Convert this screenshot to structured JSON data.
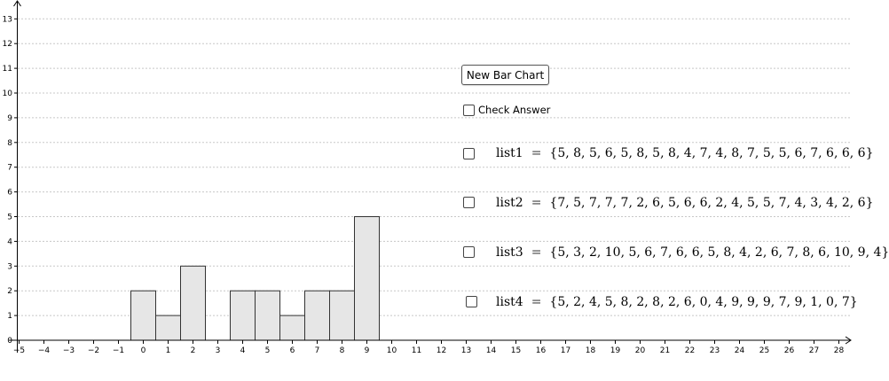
{
  "graph": {
    "x_ticks": [
      "−5",
      "−4",
      "−3",
      "−2",
      "−1",
      "0",
      "1",
      "2",
      "3",
      "4",
      "5",
      "6",
      "7",
      "8",
      "9",
      "10",
      "11",
      "12",
      "13",
      "14",
      "15",
      "16",
      "17",
      "18",
      "19",
      "20",
      "21",
      "22",
      "23",
      "24",
      "25",
      "26",
      "27",
      "28"
    ],
    "y_ticks": [
      "0",
      "1",
      "2",
      "3",
      "4",
      "5",
      "6",
      "7",
      "8",
      "9",
      "10",
      "11",
      "12",
      "13"
    ]
  },
  "chart_data": {
    "type": "bar",
    "categories": [
      0,
      1,
      2,
      3,
      4,
      5,
      6,
      7,
      8,
      9
    ],
    "values": [
      2,
      1,
      3,
      0,
      2,
      2,
      1,
      2,
      2,
      5
    ],
    "xlim": [
      -5,
      28
    ],
    "ylim": [
      0,
      13
    ],
    "grid": true,
    "bar_fill": "#e6e6e6",
    "bar_stroke": "#333333"
  },
  "controls": {
    "new_bar_chart_label": "New Bar Chart",
    "check_answer_label": "Check Answer"
  },
  "lists": [
    {
      "name": "list1",
      "values": "{5, 8, 5, 6, 5, 8, 5, 8, 4, 7, 4, 8, 7, 5, 5, 6, 7, 6, 6, 6}"
    },
    {
      "name": "list2",
      "values": "{7, 5, 7, 7, 7, 2, 6, 5, 6, 6, 2, 4, 5, 5, 7, 4, 3, 4, 2, 6}"
    },
    {
      "name": "list3",
      "values": "{5, 3, 2, 10, 5, 6, 7, 6, 6, 5, 8, 4, 2, 6, 7, 8, 6, 10, 9, 4}"
    },
    {
      "name": "list4",
      "values": "{5, 2, 4, 5, 8, 2, 8, 2, 6, 0, 4, 9, 9, 9, 7, 9, 1, 0, 7}"
    }
  ]
}
